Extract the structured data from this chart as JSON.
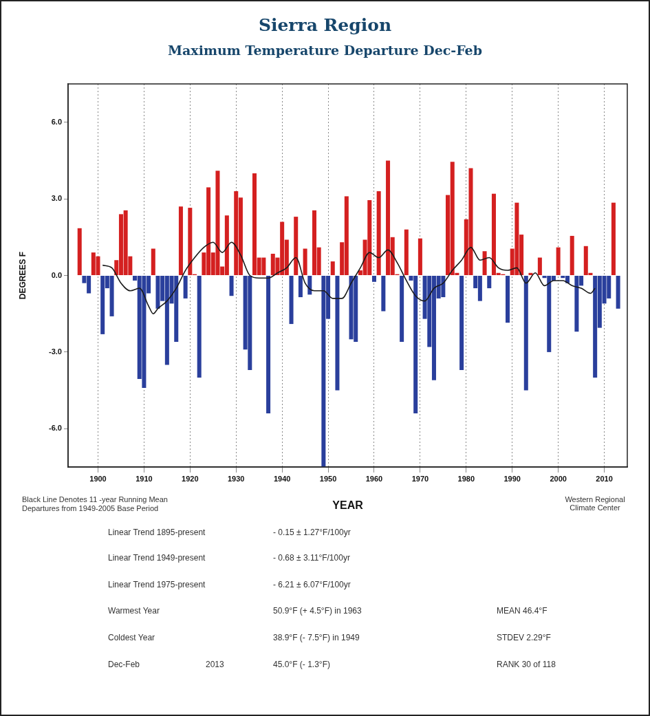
{
  "chart_data": {
    "type": "bar",
    "title": "Sierra Region",
    "subtitle": "Maximum Temperature Departure Dec-Feb",
    "xlabel": "YEAR",
    "ylabel": "DEGREES F",
    "x": [
      1896,
      1897,
      1898,
      1899,
      1900,
      1901,
      1902,
      1903,
      1904,
      1905,
      1906,
      1907,
      1908,
      1909,
      1910,
      1911,
      1912,
      1913,
      1914,
      1915,
      1916,
      1917,
      1918,
      1919,
      1920,
      1921,
      1922,
      1923,
      1924,
      1925,
      1926,
      1927,
      1928,
      1929,
      1930,
      1931,
      1932,
      1933,
      1934,
      1935,
      1936,
      1937,
      1938,
      1939,
      1940,
      1941,
      1942,
      1943,
      1944,
      1945,
      1946,
      1947,
      1948,
      1949,
      1950,
      1951,
      1952,
      1953,
      1954,
      1955,
      1956,
      1957,
      1958,
      1959,
      1960,
      1961,
      1962,
      1963,
      1964,
      1965,
      1966,
      1967,
      1968,
      1969,
      1970,
      1971,
      1972,
      1973,
      1974,
      1975,
      1976,
      1977,
      1978,
      1979,
      1980,
      1981,
      1982,
      1983,
      1984,
      1985,
      1986,
      1987,
      1988,
      1989,
      1990,
      1991,
      1992,
      1993,
      1994,
      1995,
      1996,
      1997,
      1998,
      1999,
      2000,
      2001,
      2002,
      2003,
      2004,
      2005,
      2006,
      2007,
      2008,
      2009,
      2010,
      2011,
      2012,
      2013
    ],
    "series": [
      {
        "values": [
          1.85,
          -0.3,
          -0.7,
          0.9,
          0.75,
          -2.3,
          -0.5,
          -1.6,
          0.6,
          2.4,
          2.55,
          0.75,
          -0.2,
          -4.05,
          -4.4,
          -0.7,
          1.05,
          -1.3,
          -1.0,
          -3.5,
          -1.1,
          -2.6,
          2.7,
          -0.9,
          2.65,
          0.05,
          -4.0,
          0.9,
          3.45,
          0.9,
          4.1,
          0.35,
          2.35,
          -0.8,
          3.3,
          3.05,
          -2.9,
          -3.7,
          4.0,
          0.7,
          0.7,
          -5.4,
          0.85,
          0.7,
          2.1,
          1.4,
          -1.9,
          2.3,
          -0.85,
          1.05,
          -0.75,
          2.55,
          1.1,
          -7.5,
          -1.7,
          0.55,
          -4.5,
          1.3,
          3.1,
          -2.5,
          -2.6,
          0.2,
          1.4,
          2.95,
          -0.25,
          3.3,
          -1.4,
          4.5,
          1.5,
          0.05,
          -2.6,
          1.8,
          -0.2,
          -5.4,
          1.45,
          -1.7,
          -2.8,
          -4.1,
          -0.9,
          -0.85,
          3.15,
          4.45,
          0.1,
          -3.7,
          2.2,
          4.2,
          -0.5,
          -1.0,
          0.95,
          -0.5,
          3.2,
          0.1,
          0.05,
          -1.85,
          1.05,
          2.85,
          1.6,
          -4.5,
          0.1,
          null,
          0.7,
          -0.1,
          -3.0,
          -0.2,
          1.1,
          -0.1,
          -0.3,
          1.55,
          -2.2,
          -0.4,
          1.15,
          0.1,
          -4.0,
          -2.05,
          -1.1,
          -0.9,
          2.85,
          -1.3
        ],
        "colors": [
          "#d42020",
          "#2a3f9c",
          "#2a3f9c",
          "#d42020",
          "#d42020",
          "#2a3f9c",
          "#2a3f9c",
          "#2a3f9c",
          "#d42020",
          "#d42020",
          "#d42020",
          "#d42020",
          "#2a3f9c",
          "#2a3f9c",
          "#2a3f9c",
          "#2a3f9c",
          "#d42020",
          "#2a3f9c",
          "#2a3f9c",
          "#2a3f9c",
          "#2a3f9c",
          "#2a3f9c",
          "#d42020",
          "#2a3f9c",
          "#d42020",
          "#d42020",
          "#2a3f9c",
          "#d42020",
          "#d42020",
          "#d42020",
          "#d42020",
          "#d42020",
          "#d42020",
          "#2a3f9c",
          "#d42020",
          "#d42020",
          "#2a3f9c",
          "#2a3f9c",
          "#d42020",
          "#d42020",
          "#d42020",
          "#2a3f9c",
          "#d42020",
          "#d42020",
          "#d42020",
          "#d42020",
          "#2a3f9c",
          "#d42020",
          "#2a3f9c",
          "#d42020",
          "#2a3f9c",
          "#d42020",
          "#d42020",
          "#2a3f9c",
          "#2a3f9c",
          "#d42020",
          "#2a3f9c",
          "#d42020",
          "#d42020",
          "#2a3f9c",
          "#2a3f9c",
          "#d42020",
          "#d42020",
          "#d42020",
          "#2a3f9c",
          "#d42020",
          "#2a3f9c",
          "#d42020",
          "#d42020",
          "#d42020",
          "#2a3f9c",
          "#d42020",
          "#2a3f9c",
          "#2a3f9c",
          "#d42020",
          "#2a3f9c",
          "#2a3f9c",
          "#2a3f9c",
          "#2a3f9c",
          "#2a3f9c",
          "#d42020",
          "#d42020",
          "#d42020",
          "#2a3f9c",
          "#d42020",
          "#d42020",
          "#2a3f9c",
          "#2a3f9c",
          "#d42020",
          "#2a3f9c",
          "#d42020",
          "#d42020",
          "#d42020",
          "#2a3f9c",
          "#d42020",
          "#d42020",
          "#d42020",
          "#2a3f9c",
          "#d42020",
          "#d42020",
          "#d42020",
          "#2a3f9c",
          "#2a3f9c",
          "#2a3f9c",
          "#d42020",
          "#2a3f9c",
          "#2a3f9c",
          "#d42020",
          "#2a3f9c",
          "#2a3f9c",
          "#d42020",
          "#d42020",
          "#2a3f9c",
          "#2a3f9c",
          "#2a3f9c",
          "#2a3f9c",
          "#d42020",
          "#2a3f9c"
        ]
      },
      {
        "type": "line",
        "color": "#1a1a1a",
        "x": [
          1901,
          1903,
          1905,
          1907,
          1909,
          1911,
          1912,
          1913,
          1915,
          1917,
          1919,
          1921,
          1923,
          1925,
          1927,
          1929,
          1931,
          1933,
          1935,
          1937,
          1939,
          1941,
          1943,
          1945,
          1947,
          1949,
          1951,
          1953,
          1955,
          1957,
          1959,
          1961,
          1963,
          1965,
          1967,
          1969,
          1971,
          1973,
          1975,
          1977,
          1979,
          1981,
          1983,
          1985,
          1987,
          1989,
          1991,
          1993,
          1995,
          1997,
          1999,
          2001,
          2003,
          2005,
          2007,
          2008
        ],
        "values": [
          0.4,
          0.3,
          -0.3,
          -0.6,
          -0.5,
          -1.2,
          -1.5,
          -1.3,
          -1.0,
          -0.5,
          0.2,
          0.7,
          1.1,
          1.3,
          0.9,
          1.3,
          0.8,
          0.0,
          -0.1,
          -0.1,
          0.1,
          0.3,
          0.7,
          -0.3,
          -0.6,
          -0.6,
          -0.9,
          -0.9,
          -0.3,
          0.3,
          0.9,
          0.7,
          1.0,
          0.5,
          -0.2,
          -0.8,
          -1.0,
          -0.5,
          -0.3,
          0.2,
          0.6,
          1.1,
          0.6,
          0.7,
          0.3,
          0.2,
          0.3,
          -0.3,
          0.1,
          -0.4,
          -0.2,
          -0.2,
          -0.4,
          -0.5,
          -0.7,
          -0.5
        ]
      }
    ],
    "xlim": [
      1893.5,
      2015
    ],
    "xticks": [
      1900,
      1910,
      1920,
      1930,
      1940,
      1950,
      1960,
      1970,
      1980,
      1990,
      2000,
      2010
    ],
    "ylim": [
      -7.5,
      7.5
    ],
    "yticks": [
      {
        "value": -6,
        "label": "-6.0"
      },
      {
        "value": -3,
        "label": "-3.0"
      },
      {
        "value": 0,
        "label": "0.0"
      },
      {
        "value": 3,
        "label": "3.0"
      },
      {
        "value": 6,
        "label": "6.0"
      }
    ],
    "grid": "x",
    "marker": "none",
    "line_style": "solid",
    "annotations": [
      "Black Line Denotes 11 -year Running Mean",
      "Departures from 1949-2005 Base Period",
      "Western Regional Climate Center",
      "Linear Trend 1895-present",
      "- 0.15 ± 1.27°F/100yr",
      "Linear Trend 1949-present",
      "- 0.68 ± 3.11°F/100yr",
      "Linear Trend 1975-present",
      "- 6.21 ± 6.07°F/100yr",
      "Warmest Year",
      "50.9°F (+ 4.5°F) in 1963",
      "MEAN 46.4°F",
      "Coldest Year",
      "38.9°F (- 7.5°F) in 1949",
      "STDEV 2.29°F",
      "Dec-Feb",
      "2013",
      "45.0°F (- 1.3°F)",
      "RANK 30 of 118"
    ]
  }
}
